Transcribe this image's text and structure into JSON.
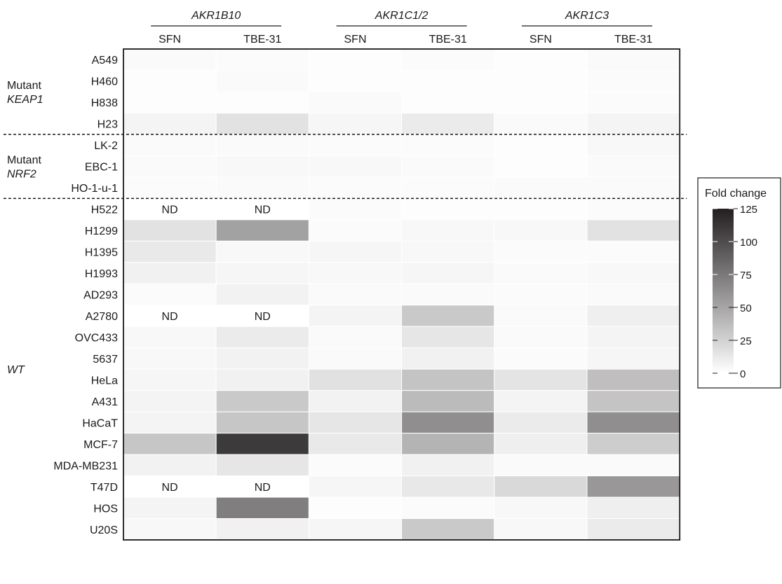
{
  "chart_data": {
    "type": "heatmap",
    "gene_groups": [
      {
        "name": "AKR1B10",
        "conditions": [
          "SFN",
          "TBE-31"
        ]
      },
      {
        "name": "AKR1C1/2",
        "conditions": [
          "SFN",
          "TBE-31"
        ]
      },
      {
        "name": "AKR1C3",
        "conditions": [
          "SFN",
          "TBE-31"
        ]
      }
    ],
    "row_groups": [
      {
        "label_lines": [
          "Mutant",
          "KEAP1"
        ],
        "label_style": [
          "normal",
          "italic"
        ],
        "rows": [
          "A549",
          "H460",
          "H838",
          "H23"
        ]
      },
      {
        "label_lines": [
          "Mutant",
          "NRF2"
        ],
        "label_style": [
          "normal",
          "italic"
        ],
        "rows": [
          "LK-2",
          "EBC-1",
          "HO-1-u-1"
        ]
      },
      {
        "label_lines": [
          "WT"
        ],
        "label_style": [
          "italic"
        ],
        "rows": [
          "H522",
          "H1299",
          "H1395",
          "H1993",
          "AD293",
          "A2780",
          "OVC433",
          "5637",
          "HeLa",
          "A431",
          "HaCaT",
          "MCF-7",
          "MDA-MB231",
          "T47D",
          "HOS",
          "U20S"
        ]
      }
    ],
    "nd_label": "ND",
    "values": [
      [
        3,
        2,
        1,
        2,
        1,
        3
      ],
      [
        1,
        3,
        1,
        1,
        1,
        2
      ],
      [
        1,
        1,
        3,
        1,
        1,
        2
      ],
      [
        6,
        16,
        5,
        11,
        3,
        6
      ],
      [
        3,
        3,
        2,
        2,
        1,
        4
      ],
      [
        3,
        4,
        4,
        3,
        1,
        3
      ],
      [
        2,
        3,
        2,
        2,
        3,
        3
      ],
      [
        null,
        null,
        2,
        1,
        1,
        2
      ],
      [
        16,
        52,
        2,
        4,
        4,
        16
      ],
      [
        12,
        4,
        5,
        4,
        2,
        2
      ],
      [
        8,
        5,
        4,
        5,
        3,
        4
      ],
      [
        2,
        7,
        3,
        3,
        2,
        3
      ],
      [
        null,
        null,
        6,
        30,
        3,
        9
      ],
      [
        4,
        11,
        3,
        14,
        3,
        6
      ],
      [
        4,
        7,
        3,
        8,
        2,
        5
      ],
      [
        5,
        8,
        17,
        33,
        15,
        36
      ],
      [
        6,
        30,
        7,
        38,
        6,
        33
      ],
      [
        6,
        32,
        14,
        63,
        11,
        63
      ],
      [
        32,
        110,
        12,
        42,
        9,
        28
      ],
      [
        7,
        14,
        2,
        8,
        3,
        3
      ],
      [
        null,
        null,
        5,
        13,
        21,
        58
      ],
      [
        6,
        72,
        1,
        2,
        4,
        9
      ],
      [
        4,
        8,
        5,
        30,
        4,
        11
      ]
    ],
    "legend": {
      "title": "Fold change",
      "ticks": [
        125,
        100,
        75,
        50,
        25,
        0
      ],
      "min": 0,
      "max": 125,
      "position": "right"
    },
    "color_min": "#ffffff",
    "color_max": "#231f20"
  }
}
